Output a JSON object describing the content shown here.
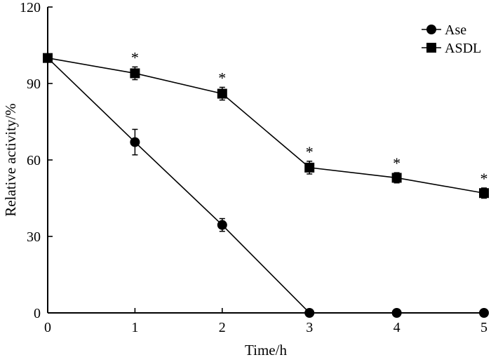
{
  "chart_data": {
    "type": "line",
    "xlabel": "Time/h",
    "ylabel": "Relative activity/%",
    "x": [
      0,
      1,
      2,
      3,
      4,
      5
    ],
    "xticks": [
      0,
      1,
      2,
      3,
      4,
      5
    ],
    "yticks": [
      0,
      30,
      60,
      90,
      120
    ],
    "xlim": [
      0,
      5
    ],
    "ylim": [
      0,
      120
    ],
    "grid": false,
    "legend_position": "top-right",
    "series": [
      {
        "name": "Ase",
        "marker": "circle",
        "values": [
          100,
          67,
          34.5,
          0,
          0,
          0
        ],
        "errors": [
          0,
          5,
          2.5,
          0,
          0,
          0
        ]
      },
      {
        "name": "ASDL",
        "marker": "square",
        "values": [
          100,
          94,
          86,
          57,
          53,
          47
        ],
        "errors": [
          0,
          2.5,
          2.5,
          2.5,
          2,
          2
        ],
        "significance": [
          "",
          "*",
          "*",
          "*",
          "*",
          "*"
        ]
      }
    ]
  }
}
